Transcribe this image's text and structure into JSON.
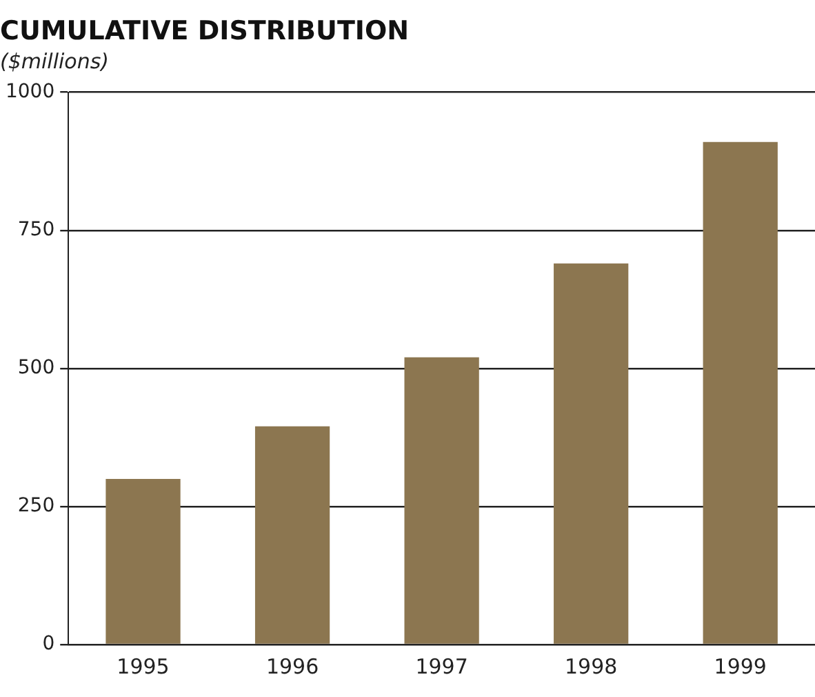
{
  "chart_data": {
    "type": "bar",
    "title": "CUMULATIVE DISTRIBUTION",
    "subtitle": "($millions)",
    "categories": [
      "1995",
      "1996",
      "1997",
      "1998",
      "1999"
    ],
    "values": [
      300,
      395,
      520,
      690,
      910
    ],
    "color": "#8c7650",
    "ylim": [
      0,
      1000
    ],
    "yticks": [
      0,
      250,
      500,
      750,
      1000
    ],
    "grid": "y",
    "legend": false
  }
}
